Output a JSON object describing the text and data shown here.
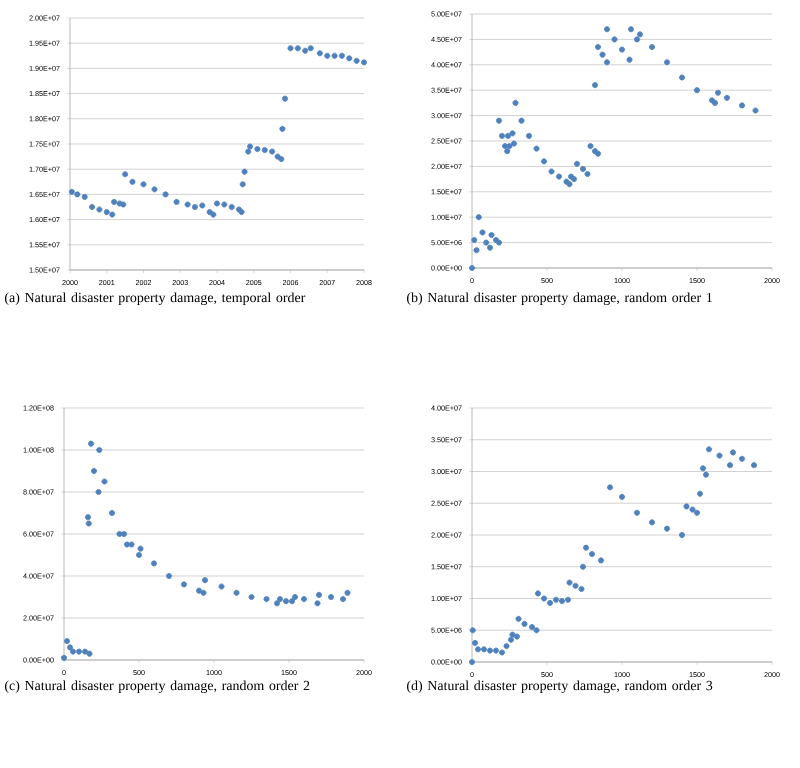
{
  "chart_data": [
    {
      "type": "scatter",
      "title": "(a) Natural disaster property damage, temporal order",
      "color": "#4f81bd",
      "marker": "circle",
      "grid": "y",
      "xlim": [
        2000,
        2008
      ],
      "ylim": [
        15000000,
        20000000
      ],
      "xticks": [
        2000,
        2001,
        2002,
        2003,
        2004,
        2005,
        2006,
        2007,
        2008
      ],
      "yticks": [
        {
          "value": 15000000,
          "label": "1.50E+07"
        },
        {
          "value": 15500000,
          "label": "1.55E+07"
        },
        {
          "value": 16000000,
          "label": "1.60E+07"
        },
        {
          "value": 16500000,
          "label": "1.65E+07"
        },
        {
          "value": 17000000,
          "label": "1.70E+07"
        },
        {
          "value": 17500000,
          "label": "1.75E+07"
        },
        {
          "value": 18000000,
          "label": "1.80E+07"
        },
        {
          "value": 18500000,
          "label": "1.85E+07"
        },
        {
          "value": 19000000,
          "label": "1.90E+07"
        },
        {
          "value": 19500000,
          "label": "1.95E+07"
        },
        {
          "value": 20000000,
          "label": "2.00E+07"
        }
      ],
      "x": [
        2000.05,
        2000.2,
        2000.4,
        2000.6,
        2000.8,
        2001.0,
        2001.15,
        2001.2,
        2001.35,
        2001.45,
        2001.5,
        2001.7,
        2002.0,
        2002.3,
        2002.6,
        2002.9,
        2003.2,
        2003.4,
        2003.6,
        2003.8,
        2003.9,
        2004.0,
        2004.2,
        2004.4,
        2004.6,
        2004.67,
        2004.7,
        2004.75,
        2004.85,
        2004.9,
        2005.1,
        2005.3,
        2005.5,
        2005.65,
        2005.75,
        2005.78,
        2005.85,
        2006.0,
        2006.2,
        2006.4,
        2006.55,
        2006.8,
        2007.0,
        2007.2,
        2007.4,
        2007.6,
        2007.8,
        2008.0
      ],
      "values": [
        16550000,
        16500000,
        16450000,
        16250000,
        16200000,
        16150000,
        16100000,
        16350000,
        16320000,
        16300000,
        16900000,
        16750000,
        16700000,
        16600000,
        16500000,
        16350000,
        16300000,
        16250000,
        16280000,
        16150000,
        16100000,
        16320000,
        16300000,
        16250000,
        16200000,
        16150000,
        16700000,
        16950000,
        17350000,
        17450000,
        17400000,
        17380000,
        17350000,
        17250000,
        17200000,
        17800000,
        18400000,
        19400000,
        19400000,
        19350000,
        19400000,
        19300000,
        19250000,
        19250000,
        19250000,
        19200000,
        19150000,
        19120000
      ]
    },
    {
      "type": "scatter",
      "title": "(b) Natural disaster property damage, random order 1",
      "color": "#4f81bd",
      "marker": "circle",
      "grid": "y",
      "xlim": [
        0,
        2000
      ],
      "ylim": [
        0,
        50000000
      ],
      "xticks": [
        0,
        500,
        1000,
        1500,
        2000
      ],
      "yticks": [
        {
          "value": 0,
          "label": "0.00E+00"
        },
        {
          "value": 5000000,
          "label": "5.00E+06"
        },
        {
          "value": 10000000,
          "label": "1.00E+07"
        },
        {
          "value": 15000000,
          "label": "1.50E+07"
        },
        {
          "value": 20000000,
          "label": "2.00E+07"
        },
        {
          "value": 25000000,
          "label": "2.50E+07"
        },
        {
          "value": 30000000,
          "label": "3.00E+07"
        },
        {
          "value": 35000000,
          "label": "3.50E+07"
        },
        {
          "value": 40000000,
          "label": "4.00E+07"
        },
        {
          "value": 45000000,
          "label": "4.50E+07"
        },
        {
          "value": 50000000,
          "label": "5.00E+07"
        }
      ],
      "x": [
        0,
        15,
        30,
        45,
        70,
        95,
        120,
        130,
        160,
        180,
        180,
        200,
        220,
        235,
        240,
        250,
        270,
        280,
        290,
        330,
        380,
        430,
        480,
        530,
        580,
        630,
        650,
        660,
        680,
        700,
        740,
        770,
        790,
        820,
        840,
        820,
        840,
        870,
        900,
        900,
        950,
        1000,
        1050,
        1060,
        1100,
        1120,
        1200,
        1300,
        1400,
        1500,
        1600,
        1620,
        1640,
        1700,
        1800,
        1890
      ],
      "values": [
        0,
        5500000,
        3500000,
        10000000,
        7000000,
        5000000,
        4000000,
        6500000,
        5500000,
        5000000,
        29000000,
        26000000,
        24000000,
        23000000,
        26000000,
        24000000,
        26500000,
        24500000,
        32500000,
        29000000,
        26000000,
        23500000,
        21000000,
        19000000,
        18000000,
        17000000,
        16500000,
        18000000,
        17500000,
        20500000,
        19500000,
        18500000,
        24000000,
        23000000,
        22500000,
        36000000,
        43500000,
        42000000,
        40500000,
        47000000,
        45000000,
        43000000,
        41000000,
        47000000,
        45000000,
        46000000,
        43500000,
        40500000,
        37500000,
        35000000,
        33000000,
        32500000,
        34500000,
        33500000,
        32000000,
        31000000
      ]
    },
    {
      "type": "scatter",
      "title": "(c) Natural disaster property damage, random order 2",
      "color": "#4f81bd",
      "marker": "circle",
      "grid": "y",
      "xlim": [
        0,
        2000
      ],
      "ylim": [
        0,
        120000000
      ],
      "xticks": [
        0,
        500,
        1000,
        1500,
        2000
      ],
      "yticks": [
        {
          "value": 0,
          "label": "0.00E+00"
        },
        {
          "value": 20000000,
          "label": "2.00E+07"
        },
        {
          "value": 40000000,
          "label": "4.00E+07"
        },
        {
          "value": 60000000,
          "label": "6.00E+07"
        },
        {
          "value": 80000000,
          "label": "8.00E+07"
        },
        {
          "value": 100000000,
          "label": "1.00E+08"
        },
        {
          "value": 120000000,
          "label": "1.20E+08"
        }
      ],
      "x": [
        0,
        20,
        40,
        60,
        100,
        140,
        170,
        160,
        165,
        180,
        200,
        230,
        235,
        270,
        320,
        370,
        420,
        400,
        450,
        500,
        510,
        600,
        700,
        800,
        900,
        930,
        940,
        1050,
        1150,
        1250,
        1350,
        1420,
        1440,
        1480,
        1520,
        1540,
        1600,
        1690,
        1700,
        1780,
        1860,
        1890
      ],
      "values": [
        1000000,
        9000000,
        6000000,
        4000000,
        4000000,
        4000000,
        3000000,
        68000000,
        65000000,
        103000000,
        90000000,
        80000000,
        100000000,
        85000000,
        70000000,
        60000000,
        55000000,
        60000000,
        55000000,
        50000000,
        53000000,
        46000000,
        40000000,
        36000000,
        33000000,
        32000000,
        38000000,
        35000000,
        32000000,
        30000000,
        29000000,
        27000000,
        29000000,
        28000000,
        28000000,
        30000000,
        29000000,
        27000000,
        31000000,
        30000000,
        29000000,
        32000000
      ]
    },
    {
      "type": "scatter",
      "title": "(d) Natural disaster property damage, random order 3",
      "color": "#4f81bd",
      "marker": "circle",
      "grid": "y",
      "xlim": [
        0,
        2000
      ],
      "ylim": [
        0,
        40000000
      ],
      "xticks": [
        0,
        500,
        1000,
        1500,
        2000
      ],
      "yticks": [
        {
          "value": 0,
          "label": "0.00E+00"
        },
        {
          "value": 5000000,
          "label": "5.00E+06"
        },
        {
          "value": 10000000,
          "label": "1.00E+07"
        },
        {
          "value": 15000000,
          "label": "1.50E+07"
        },
        {
          "value": 20000000,
          "label": "2.00E+07"
        },
        {
          "value": 25000000,
          "label": "2.50E+07"
        },
        {
          "value": 30000000,
          "label": "3.00E+07"
        },
        {
          "value": 35000000,
          "label": "3.50E+07"
        },
        {
          "value": 40000000,
          "label": "4.00E+07"
        }
      ],
      "x": [
        0,
        5,
        20,
        40,
        80,
        120,
        160,
        200,
        230,
        260,
        270,
        300,
        310,
        350,
        400,
        430,
        440,
        480,
        520,
        560,
        600,
        640,
        650,
        690,
        730,
        740,
        760,
        800,
        860,
        920,
        1000,
        1100,
        1200,
        1300,
        1400,
        1430,
        1470,
        1500,
        1520,
        1540,
        1560,
        1580,
        1650,
        1720,
        1740,
        1800,
        1880
      ],
      "values": [
        0,
        5000000,
        3000000,
        2000000,
        2000000,
        1800000,
        1800000,
        1500000,
        2500000,
        3500000,
        4300000,
        4000000,
        6800000,
        6000000,
        5500000,
        5000000,
        10800000,
        10000000,
        9300000,
        9800000,
        9600000,
        9800000,
        12500000,
        12000000,
        11500000,
        15000000,
        18000000,
        17000000,
        16000000,
        27500000,
        26000000,
        23500000,
        22000000,
        21000000,
        20000000,
        24500000,
        24000000,
        23500000,
        26500000,
        30500000,
        29500000,
        33500000,
        32500000,
        31000000,
        33000000,
        32000000,
        31000000
      ]
    }
  ]
}
